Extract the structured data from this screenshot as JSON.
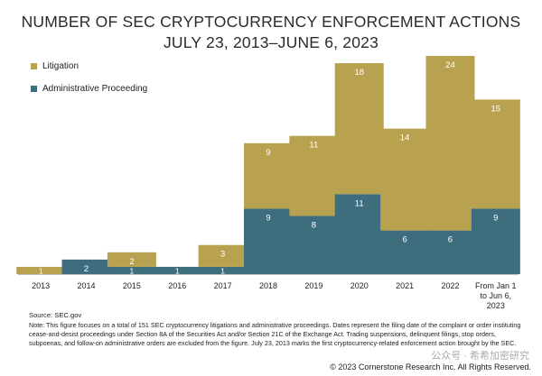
{
  "chart_data": {
    "type": "bar",
    "stacked": true,
    "title": "NUMBER OF SEC CRYPTOCURRENCY ENFORCEMENT ACTIONS",
    "subtitle": "JULY 23, 2013–JUNE 6, 2023",
    "categories": [
      "2013",
      "2014",
      "2015",
      "2016",
      "2017",
      "2018",
      "2019",
      "2020",
      "2021",
      "2022",
      "From Jan 1 to Jun 6, 2023"
    ],
    "category_lines": [
      [
        "2013"
      ],
      [
        "2014"
      ],
      [
        "2015"
      ],
      [
        "2016"
      ],
      [
        "2017"
      ],
      [
        "2018"
      ],
      [
        "2019"
      ],
      [
        "2020"
      ],
      [
        "2021"
      ],
      [
        "2022"
      ],
      [
        "From Jan 1",
        "to Jun 6,",
        "2023"
      ]
    ],
    "series": [
      {
        "name": "Administrative Proceeding",
        "color": "#3e6d7d",
        "values": [
          0,
          2,
          1,
          1,
          1,
          9,
          8,
          11,
          6,
          6,
          9
        ]
      },
      {
        "name": "Litigation",
        "color": "#b9a24f",
        "values": [
          1,
          0,
          2,
          0,
          3,
          9,
          11,
          18,
          14,
          24,
          15
        ]
      }
    ],
    "data_labels": {
      "Administrative Proceeding": [
        "",
        "2",
        "1",
        "1",
        "1",
        "9",
        "8",
        "11",
        "6",
        "6",
        "9"
      ],
      "Litigation": [
        "1",
        "",
        "2",
        "",
        "3",
        "9",
        "11",
        "18",
        "14",
        "24",
        "15"
      ]
    },
    "ylim": [
      0,
      30
    ],
    "grid": false,
    "legend_position": "top-left",
    "legend_order": [
      "Litigation",
      "Administrative Proceeding"
    ],
    "xlabel": "",
    "ylabel": ""
  },
  "source": "Source: SEC.gov",
  "note": "Note: This figure focuses on a total of 151 SEC cryptocurrency litigations and administrative proceedings. Dates represent the filing date of the complaint or order instituting cease-and-desist proceedings under Section 8A of the Securities Act and/or Section 21C of the Exchange Act. Trading suspensions, delinquent filings, stop orders, subpoenas, and follow-on administrative orders are excluded from the figure. July 23, 2013 marks the first cryptocurrency-related enforcement action brought by the SEC.",
  "copyright": "© 2023 Cornerstone Research Inc. All Rights Reserved.",
  "watermark": "公众号 · 希希加密研究"
}
